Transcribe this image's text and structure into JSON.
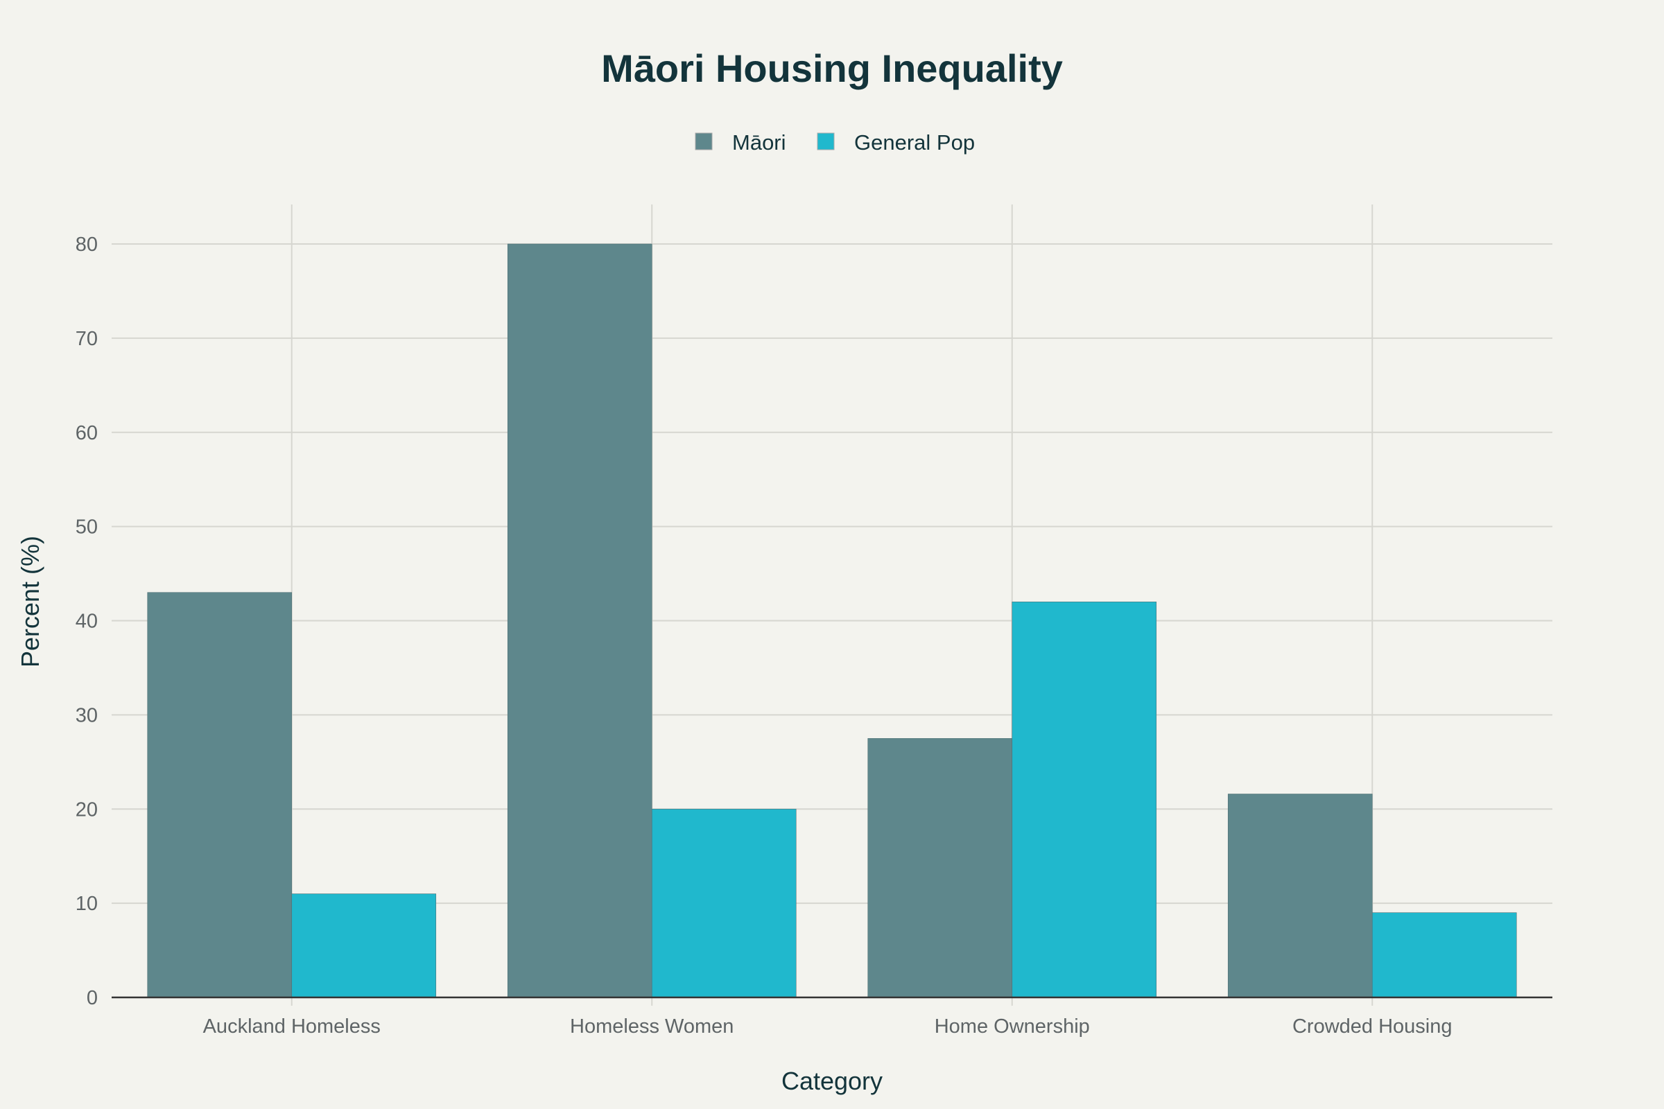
{
  "chart_data": {
    "type": "bar",
    "title": "Māori Housing Inequality",
    "xlabel": "Category",
    "ylabel": "Percent (%)",
    "categories": [
      "Auckland Homeless",
      "Homeless Women",
      "Home Ownership",
      "Crowded Housing"
    ],
    "series": [
      {
        "name": "Māori",
        "color": "#5e878c",
        "values": [
          43,
          80,
          27.5,
          21.6
        ]
      },
      {
        "name": "General Pop",
        "color": "#20b8cd",
        "values": [
          11,
          20,
          42,
          9
        ]
      }
    ],
    "ylim": [
      0,
      84
    ],
    "yticks": [
      0,
      10,
      20,
      30,
      40,
      50,
      60,
      70,
      80
    ],
    "grid": true,
    "legend_position": "top-center",
    "background": "#f3f3ee"
  }
}
